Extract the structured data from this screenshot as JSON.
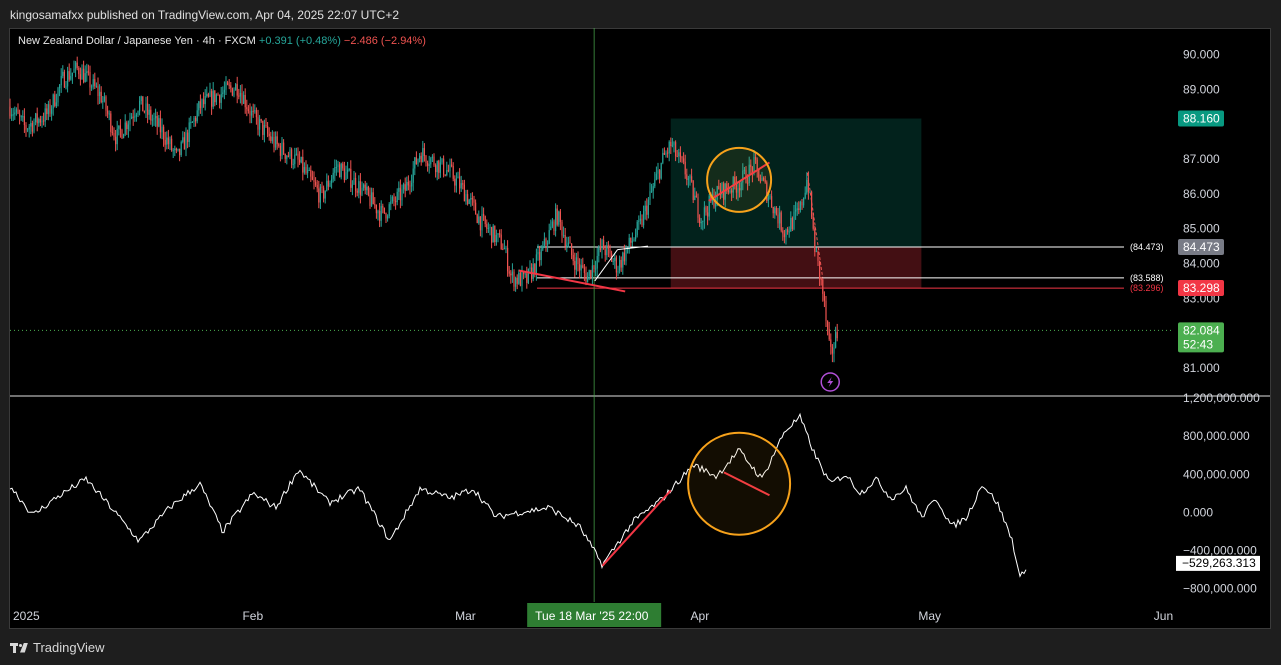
{
  "header": {
    "published_text": "kingosamafxx published on TradingView.com, Apr 04, 2025 22:07 UTC+2"
  },
  "legend": {
    "symbol": "New Zealand Dollar / Japanese Yen · 4h · FXCM",
    "change_up": "+0.391 (+0.48%)",
    "change_down": "−2.486 (−2.94%)"
  },
  "footer": {
    "brand": "TradingView"
  },
  "colors": {
    "bull": "#26a69a",
    "bear": "#ef5350",
    "annotation_orange": "#f7a21b",
    "annotation_red": "#f23645",
    "current_price_bg": "#4caf50",
    "target_bg": "#089981",
    "stop_bg": "#f23645",
    "entry_bg": "#787b86"
  },
  "chart_data": [
    {
      "type": "candlestick",
      "title": "New Zealand Dollar / Japanese Yen · 4h · FXCM",
      "x_axis": {
        "tick_labels": [
          "2025",
          "Feb",
          "Mar",
          "Apr",
          "May",
          "Jun"
        ],
        "tick_dates": [
          "2025-01-01",
          "2025-02-01",
          "2025-03-01",
          "2025-04-01",
          "2025-05-01",
          "2025-06-01"
        ],
        "range": [
          "2025-01-01",
          "2025-06-03"
        ],
        "crosshair_label": "Tue 18 Mar '25   22:00",
        "crosshair_date": "2025-03-18T22:00"
      },
      "y_axis": {
        "range": [
          80.2,
          90.7
        ],
        "ticks": [
          {
            "value": 90,
            "label": "90.000"
          },
          {
            "value": 89,
            "label": "89.000"
          },
          {
            "value": 87,
            "label": "87.000"
          },
          {
            "value": 86,
            "label": "86.000"
          },
          {
            "value": 85,
            "label": "85.000"
          },
          {
            "value": 84,
            "label": "84.000"
          },
          {
            "value": 83,
            "label": "83.000"
          },
          {
            "value": 81,
            "label": "81.000"
          }
        ]
      },
      "price_path": [
        [
          "2025-01-01",
          88.5
        ],
        [
          "2025-01-03",
          87.9
        ],
        [
          "2025-01-06",
          88.3
        ],
        [
          "2025-01-08",
          89.3
        ],
        [
          "2025-01-10",
          89.6
        ],
        [
          "2025-01-13",
          88.8
        ],
        [
          "2025-01-15",
          87.6
        ],
        [
          "2025-01-18",
          88.6
        ],
        [
          "2025-01-21",
          87.8
        ],
        [
          "2025-01-23",
          87.0
        ],
        [
          "2025-01-26",
          88.5
        ],
        [
          "2025-01-28",
          88.8
        ],
        [
          "2025-01-31",
          89.1
        ],
        [
          "2025-02-02",
          88.2
        ],
        [
          "2025-02-05",
          87.4
        ],
        [
          "2025-02-08",
          86.9
        ],
        [
          "2025-02-11",
          85.9
        ],
        [
          "2025-02-13",
          86.8
        ],
        [
          "2025-02-16",
          86.2
        ],
        [
          "2025-02-19",
          85.4
        ],
        [
          "2025-02-22",
          86.1
        ],
        [
          "2025-02-24",
          87.2
        ],
        [
          "2025-02-26",
          86.9
        ],
        [
          "2025-02-28",
          86.6
        ],
        [
          "2025-03-02",
          86.0
        ],
        [
          "2025-03-04",
          85.2
        ],
        [
          "2025-03-07",
          84.5
        ],
        [
          "2025-03-08",
          83.6
        ],
        [
          "2025-03-10",
          83.5
        ],
        [
          "2025-03-12",
          84.3
        ],
        [
          "2025-03-14",
          85.4
        ],
        [
          "2025-03-16",
          84.2
        ],
        [
          "2025-03-18",
          83.6
        ],
        [
          "2025-03-20",
          84.5
        ],
        [
          "2025-03-22",
          83.9
        ],
        [
          "2025-03-25",
          85.1
        ],
        [
          "2025-03-28",
          87.0
        ],
        [
          "2025-03-29",
          87.4
        ],
        [
          "2025-03-31",
          86.6
        ],
        [
          "2025-04-02",
          85.3
        ],
        [
          "2025-04-04",
          86.0
        ],
        [
          "2025-04-07",
          86.3
        ],
        [
          "2025-04-09",
          86.8
        ],
        [
          "2025-04-11",
          85.9
        ],
        [
          "2025-04-13",
          84.9
        ],
        [
          "2025-04-15",
          85.5
        ],
        [
          "2025-04-16",
          86.5
        ],
        [
          "2025-04-17",
          84.4
        ],
        [
          "2025-04-18",
          83.2
        ],
        [
          "2025-04-19",
          81.3
        ],
        [
          "2025-04-20",
          82.08
        ]
      ],
      "position": {
        "entry": 84.473,
        "target": 88.16,
        "stop": 83.298,
        "start": "2025-03-29",
        "end": "2025-05-01"
      },
      "horizontal_lines": [
        {
          "value": 84.473,
          "label": "(84.473)"
        },
        {
          "value": 83.588,
          "label": "(83.588)"
        },
        {
          "value": 83.296,
          "label": "(83.296)"
        }
      ],
      "price_labels": {
        "target": "88.160",
        "entry": "84.473",
        "stop": "83.298",
        "current": "82.084",
        "countdown": "52:43"
      },
      "current_price": 82.084,
      "annotations": {
        "lower_trendline": {
          "from": [
            "2025-03-09",
            83.8
          ],
          "to": [
            "2025-03-23",
            83.2
          ]
        },
        "wedge_lines": [
          {
            "from": [
              "2025-03-19",
              83.5
            ],
            "to": [
              "2025-03-22",
              84.4
            ]
          },
          {
            "from": [
              "2025-03-22",
              84.4
            ],
            "to": [
              "2025-03-26",
              84.5
            ]
          }
        ],
        "circle_trendline": {
          "from": [
            "2025-04-03",
            85.8
          ],
          "to": [
            "2025-04-11",
            86.9
          ]
        },
        "circle_center": [
          "2025-04-07",
          86.4
        ],
        "drop_path": {
          "from": [
            "2025-04-16",
            86.6
          ],
          "to": [
            "2025-04-18",
            83.6
          ]
        },
        "event_icon": "lightning-icon",
        "event_date": "2025-04-19"
      }
    },
    {
      "type": "line",
      "x_axis": {
        "range": [
          "2025-01-01",
          "2025-06-03"
        ]
      },
      "y_axis": {
        "range": [
          -950000000,
          1210000000
        ],
        "ticks": [
          {
            "value": 1200000000,
            "label": "1,200,000.000"
          },
          {
            "value": 800000000,
            "label": "800,000.000"
          },
          {
            "value": 400000000,
            "label": "400,000.000"
          },
          {
            "value": 0,
            "label": "0.000"
          },
          {
            "value": -400000000,
            "label": "−400,000.000"
          },
          {
            "value": -800000000,
            "label": "−800,000.000"
          }
        ]
      },
      "series_path": [
        [
          "2025-01-01",
          280000000
        ],
        [
          "2025-01-04",
          -30000000
        ],
        [
          "2025-01-07",
          150000000
        ],
        [
          "2025-01-11",
          350000000
        ],
        [
          "2025-01-14",
          80000000
        ],
        [
          "2025-01-18",
          -300000000
        ],
        [
          "2025-01-22",
          50000000
        ],
        [
          "2025-01-26",
          300000000
        ],
        [
          "2025-01-29",
          -200000000
        ],
        [
          "2025-02-02",
          200000000
        ],
        [
          "2025-02-05",
          50000000
        ],
        [
          "2025-02-08",
          450000000
        ],
        [
          "2025-02-12",
          100000000
        ],
        [
          "2025-02-16",
          250000000
        ],
        [
          "2025-02-20",
          -300000000
        ],
        [
          "2025-02-24",
          250000000
        ],
        [
          "2025-02-28",
          150000000
        ],
        [
          "2025-03-03",
          250000000
        ],
        [
          "2025-03-06",
          -50000000
        ],
        [
          "2025-03-09",
          0
        ],
        [
          "2025-03-13",
          50000000
        ],
        [
          "2025-03-17",
          -150000000
        ],
        [
          "2025-03-20",
          -550000000
        ],
        [
          "2025-03-24",
          -100000000
        ],
        [
          "2025-03-28",
          150000000
        ],
        [
          "2025-04-01",
          500000000
        ],
        [
          "2025-04-04",
          380000000
        ],
        [
          "2025-04-07",
          650000000
        ],
        [
          "2025-04-10",
          350000000
        ],
        [
          "2025-04-13",
          850000000
        ],
        [
          "2025-04-15",
          1000000000
        ],
        [
          "2025-04-17",
          600000000
        ],
        [
          "2025-04-19",
          300000000
        ],
        [
          "2025-04-21",
          400000000
        ],
        [
          "2025-04-23",
          200000000
        ],
        [
          "2025-04-25",
          350000000
        ],
        [
          "2025-04-27",
          150000000
        ],
        [
          "2025-04-29",
          250000000
        ],
        [
          "2025-05-01",
          -50000000
        ],
        [
          "2025-05-03",
          150000000
        ],
        [
          "2025-05-05",
          -150000000
        ],
        [
          "2025-05-07",
          -50000000
        ],
        [
          "2025-05-09",
          300000000
        ],
        [
          "2025-05-11",
          100000000
        ],
        [
          "2025-05-13",
          -300000000
        ],
        [
          "2025-05-14",
          -700000000
        ],
        [
          "2025-05-15",
          -529263313
        ]
      ],
      "last_value_label": "−529,263.313",
      "annotations": {
        "rising_line": {
          "from": [
            "2025-03-20",
            -560000000
          ],
          "to": [
            "2025-03-29",
            230000000
          ]
        },
        "falling_line": {
          "from": [
            "2025-04-05",
            420000000
          ],
          "to": [
            "2025-04-11",
            180000000
          ]
        },
        "circle_center": [
          "2025-04-07",
          300000000
        ]
      }
    }
  ]
}
